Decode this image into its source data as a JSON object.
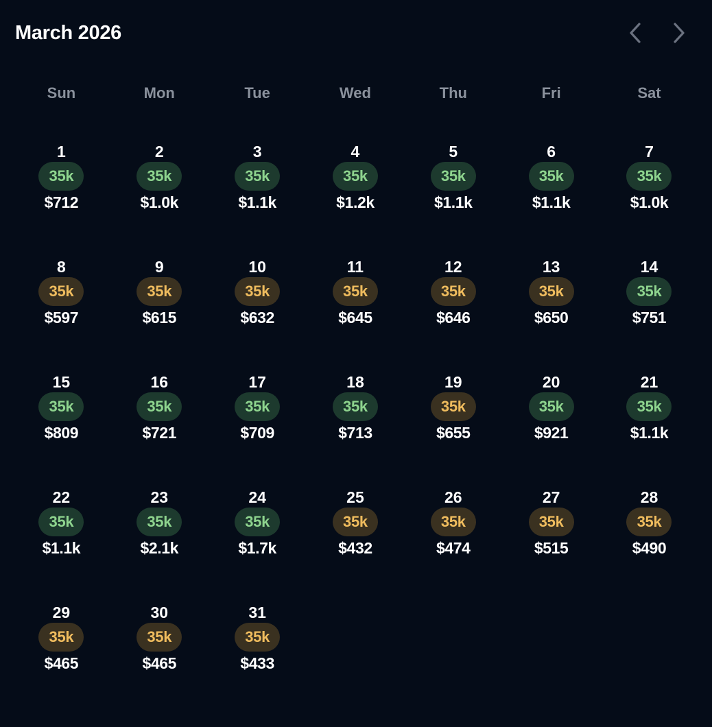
{
  "header": {
    "month_title": "March 2026",
    "prev_icon": "chevron-left-icon",
    "next_icon": "chevron-right-icon",
    "icon_color": "#6b7280"
  },
  "weekdays": [
    "Sun",
    "Mon",
    "Tue",
    "Wed",
    "Thu",
    "Fri",
    "Sat"
  ],
  "first_weekday_index": 0,
  "colors": {
    "good_badge_bg": "#1d3a2e",
    "good_badge_text": "#8ed48e",
    "warn_badge_bg": "#3a3120",
    "warn_badge_text": "#efbc5e"
  },
  "days": [
    {
      "day": "1",
      "points": "35k",
      "status": "good",
      "price": "$712"
    },
    {
      "day": "2",
      "points": "35k",
      "status": "good",
      "price": "$1.0k"
    },
    {
      "day": "3",
      "points": "35k",
      "status": "good",
      "price": "$1.1k"
    },
    {
      "day": "4",
      "points": "35k",
      "status": "good",
      "price": "$1.2k"
    },
    {
      "day": "5",
      "points": "35k",
      "status": "good",
      "price": "$1.1k"
    },
    {
      "day": "6",
      "points": "35k",
      "status": "good",
      "price": "$1.1k"
    },
    {
      "day": "7",
      "points": "35k",
      "status": "good",
      "price": "$1.0k"
    },
    {
      "day": "8",
      "points": "35k",
      "status": "warn",
      "price": "$597"
    },
    {
      "day": "9",
      "points": "35k",
      "status": "warn",
      "price": "$615"
    },
    {
      "day": "10",
      "points": "35k",
      "status": "warn",
      "price": "$632"
    },
    {
      "day": "11",
      "points": "35k",
      "status": "warn",
      "price": "$645"
    },
    {
      "day": "12",
      "points": "35k",
      "status": "warn",
      "price": "$646"
    },
    {
      "day": "13",
      "points": "35k",
      "status": "warn",
      "price": "$650"
    },
    {
      "day": "14",
      "points": "35k",
      "status": "good",
      "price": "$751"
    },
    {
      "day": "15",
      "points": "35k",
      "status": "good",
      "price": "$809"
    },
    {
      "day": "16",
      "points": "35k",
      "status": "good",
      "price": "$721"
    },
    {
      "day": "17",
      "points": "35k",
      "status": "good",
      "price": "$709"
    },
    {
      "day": "18",
      "points": "35k",
      "status": "good",
      "price": "$713"
    },
    {
      "day": "19",
      "points": "35k",
      "status": "warn",
      "price": "$655"
    },
    {
      "day": "20",
      "points": "35k",
      "status": "good",
      "price": "$921"
    },
    {
      "day": "21",
      "points": "35k",
      "status": "good",
      "price": "$1.1k"
    },
    {
      "day": "22",
      "points": "35k",
      "status": "good",
      "price": "$1.1k"
    },
    {
      "day": "23",
      "points": "35k",
      "status": "good",
      "price": "$2.1k"
    },
    {
      "day": "24",
      "points": "35k",
      "status": "good",
      "price": "$1.7k"
    },
    {
      "day": "25",
      "points": "35k",
      "status": "warn",
      "price": "$432"
    },
    {
      "day": "26",
      "points": "35k",
      "status": "warn",
      "price": "$474"
    },
    {
      "day": "27",
      "points": "35k",
      "status": "warn",
      "price": "$515"
    },
    {
      "day": "28",
      "points": "35k",
      "status": "warn",
      "price": "$490"
    },
    {
      "day": "29",
      "points": "35k",
      "status": "warn",
      "price": "$465"
    },
    {
      "day": "30",
      "points": "35k",
      "status": "warn",
      "price": "$465"
    },
    {
      "day": "31",
      "points": "35k",
      "status": "warn",
      "price": "$433"
    }
  ]
}
